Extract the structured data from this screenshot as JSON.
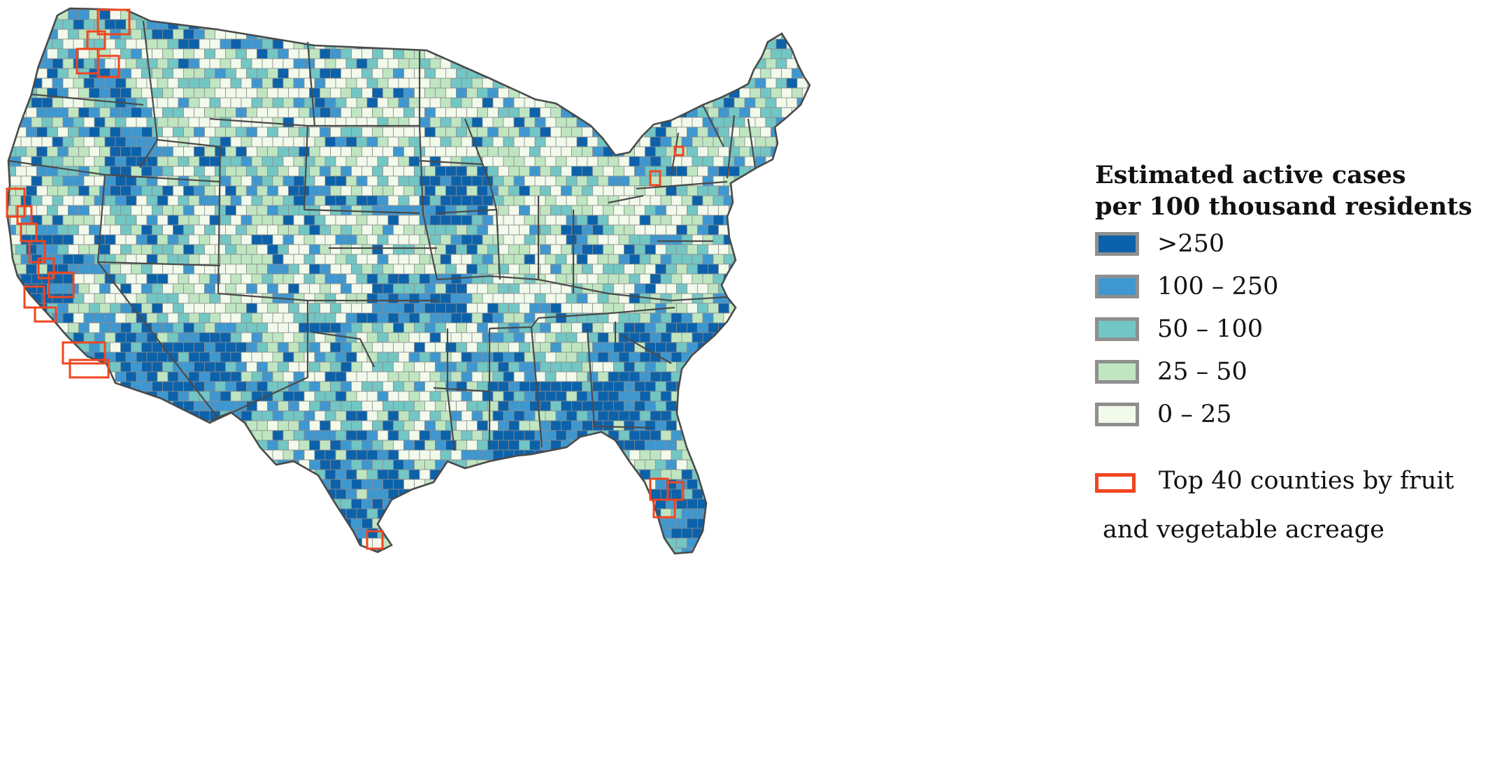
{
  "legend": {
    "title_line1": "Estimated active cases",
    "title_line2": "per 100 thousand residents",
    "bins": [
      {
        "label": ">250",
        "color": "#0b62aa"
      },
      {
        "label": "100 – 250",
        "color": "#3f97cf"
      },
      {
        "label": "50 – 100",
        "color": "#72c6c4"
      },
      {
        "label": "25 – 50",
        "color": "#bfe6c1"
      },
      {
        "label": "0 – 25",
        "color": "#f2faeb"
      }
    ],
    "highlight": {
      "line1": "Top 40 counties by fruit",
      "line2": "and vegetable acreage",
      "color": "#f0451f"
    }
  },
  "map_style": {
    "state_border_color": "#4a4a4a",
    "county_border_color": "#8c8c8c"
  }
}
